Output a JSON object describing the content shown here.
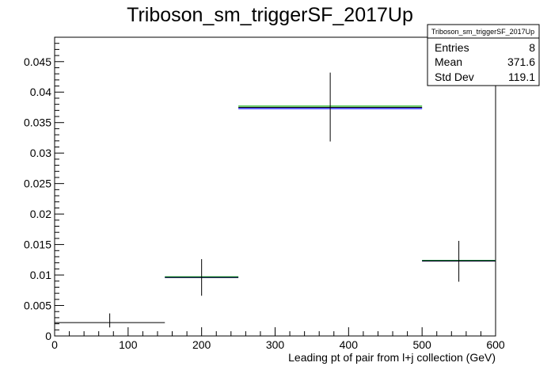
{
  "chart_data": {
    "type": "histogram",
    "title": "Triboson_sm_triggerSF_2017Up",
    "xlabel": "Leading pt of pair from l+j collection (GeV)",
    "ylabel": "",
    "xlim": [
      0,
      600
    ],
    "ylim": [
      0,
      0.049
    ],
    "x_ticks": [
      0,
      100,
      200,
      300,
      400,
      500,
      600
    ],
    "y_ticks": [
      0,
      0.005,
      0.01,
      0.015,
      0.02,
      0.025,
      0.03,
      0.035,
      0.04,
      0.045
    ],
    "grid": false,
    "bins": [
      {
        "x_low": 0,
        "x_high": 150,
        "value": 0.0022,
        "err_low": 0.0008,
        "err_high": 0.0015
      },
      {
        "x_low": 150,
        "x_high": 250,
        "value": 0.0096,
        "err_low": 0.003,
        "err_high": 0.003
      },
      {
        "x_low": 250,
        "x_high": 500,
        "value": 0.0375,
        "err_low": 0.0056,
        "err_high": 0.0057
      },
      {
        "x_low": 500,
        "x_high": 600,
        "value": 0.0123,
        "err_low": 0.0034,
        "err_high": 0.0033
      }
    ],
    "overlay_lines": [
      {
        "color": "#00aa00",
        "values": [
          null,
          0.0097,
          0.0377,
          0.0124
        ]
      },
      {
        "color": "#0000ff",
        "values": [
          null,
          0.0096,
          0.0373,
          0.0123
        ]
      }
    ],
    "stats_box": {
      "name": "Triboson_sm_triggerSF_2017Up",
      "rows": [
        {
          "label": "Entries",
          "value": "8"
        },
        {
          "label": "Mean",
          "value": "371.6"
        },
        {
          "label": "Std Dev",
          "value": "119.1"
        }
      ]
    },
    "colors": {
      "data": "#000000",
      "frame": "#000000",
      "background": "#ffffff"
    }
  }
}
